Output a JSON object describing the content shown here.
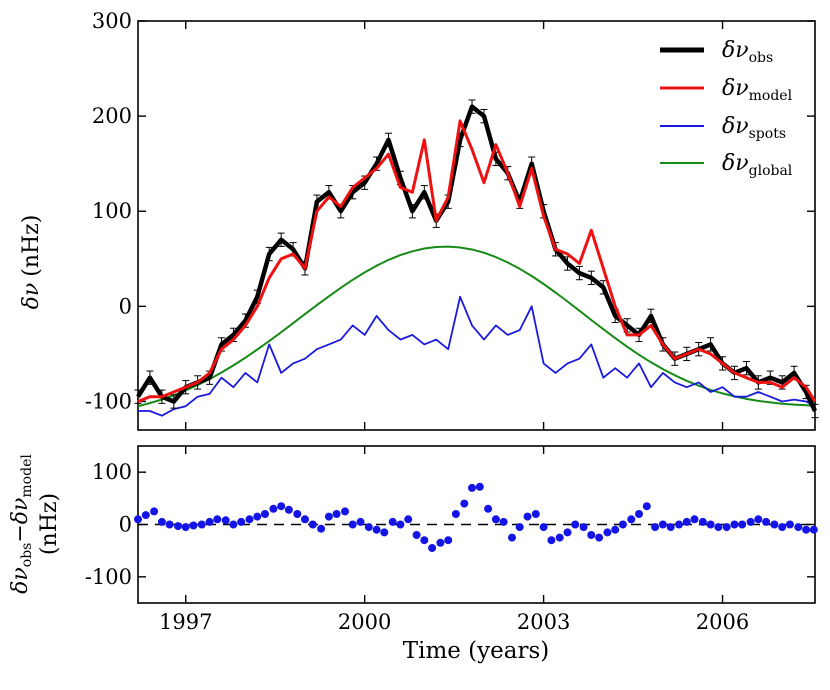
{
  "chart_data": [
    {
      "type": "line",
      "panel": "top",
      "ylabel": {
        "sym": "δν",
        "unit": "(nHz)"
      },
      "x_range": [
        1996.2,
        2007.55
      ],
      "ylim": [
        -130,
        300
      ],
      "x_ticks": [
        1997,
        2000,
        2003,
        2006
      ],
      "y_ticks": [
        -100,
        0,
        100,
        200,
        300
      ],
      "y_tick_labels": [
        "-100",
        "0",
        "100",
        "200",
        "300"
      ],
      "legend_position": "top-right",
      "legend": [
        {
          "sym": "δν",
          "sub": "obs",
          "color": "#000000"
        },
        {
          "sym": "δν",
          "sub": "model",
          "color": "#ee1111"
        },
        {
          "sym": "δν",
          "sub": "spots",
          "color": "#1a1adc"
        },
        {
          "sym": "δν",
          "sub": "global",
          "color": "#178a17"
        }
      ],
      "x": [
        1996.2,
        1996.4,
        1996.6,
        1996.8,
        1997.0,
        1997.2,
        1997.4,
        1997.6,
        1997.8,
        1998.0,
        1998.2,
        1998.4,
        1998.6,
        1998.8,
        1999.0,
        1999.2,
        1999.4,
        1999.6,
        1999.8,
        2000.0,
        2000.2,
        2000.4,
        2000.6,
        2000.8,
        2001.0,
        2001.2,
        2001.4,
        2001.6,
        2001.8,
        2002.0,
        2002.2,
        2002.4,
        2002.6,
        2002.8,
        2003.0,
        2003.2,
        2003.4,
        2003.6,
        2003.8,
        2004.0,
        2004.2,
        2004.4,
        2004.6,
        2004.8,
        2005.0,
        2005.2,
        2005.4,
        2005.6,
        2005.8,
        2006.0,
        2006.2,
        2006.4,
        2006.6,
        2006.8,
        2007.0,
        2007.2,
        2007.4,
        2007.55
      ],
      "series": [
        {
          "name": "obs",
          "values": [
            -95,
            -75,
            -95,
            -100,
            -85,
            -80,
            -75,
            -40,
            -30,
            -15,
            10,
            55,
            70,
            60,
            40,
            110,
            120,
            100,
            120,
            130,
            150,
            175,
            135,
            100,
            120,
            90,
            110,
            175,
            210,
            200,
            155,
            140,
            110,
            150,
            100,
            60,
            45,
            35,
            30,
            20,
            -10,
            -20,
            -30,
            -10,
            -40,
            -55,
            -50,
            -45,
            -40,
            -60,
            -70,
            -65,
            -80,
            -75,
            -80,
            -70,
            -90,
            -110
          ]
        },
        {
          "name": "model",
          "values": [
            -100,
            -95,
            -95,
            -90,
            -85,
            -80,
            -70,
            -45,
            -35,
            -20,
            0,
            30,
            50,
            55,
            40,
            100,
            115,
            105,
            125,
            135,
            145,
            160,
            125,
            120,
            175,
            90,
            115,
            195,
            165,
            130,
            170,
            140,
            105,
            145,
            95,
            60,
            55,
            45,
            80,
            40,
            0,
            -30,
            -30,
            -20,
            -40,
            -55,
            -50,
            -45,
            -50,
            -60,
            -70,
            -75,
            -80,
            -80,
            -85,
            -75,
            -85,
            -100
          ]
        },
        {
          "name": "spots",
          "values": [
            -110,
            -110,
            -115,
            -108,
            -105,
            -95,
            -92,
            -75,
            -85,
            -70,
            -80,
            -40,
            -70,
            -60,
            -55,
            -45,
            -40,
            -35,
            -20,
            -30,
            -10,
            -25,
            -35,
            -30,
            -40,
            -35,
            -45,
            10,
            -20,
            -35,
            -20,
            -30,
            -25,
            0,
            -60,
            -70,
            -60,
            -55,
            -40,
            -75,
            -65,
            -75,
            -60,
            -85,
            -70,
            -80,
            -85,
            -80,
            -90,
            -85,
            -95,
            -95,
            -90,
            -95,
            -100,
            -98,
            -100,
            -105
          ]
        },
        {
          "name": "global",
          "values": [
            -105.0,
            -101.7,
            -97.9,
            -93.5,
            -88.5,
            -82.8,
            -76.5,
            -69.6,
            -62.1,
            -54.0,
            -45.4,
            -36.5,
            -27.2,
            -17.7,
            -8.2,
            1.3,
            10.6,
            19.5,
            27.9,
            35.7,
            42.7,
            48.8,
            53.9,
            57.9,
            60.8,
            62.4,
            62.8,
            61.9,
            59.8,
            56.4,
            51.8,
            46.1,
            39.5,
            31.9,
            23.5,
            14.6,
            5.1,
            -4.6,
            -14.4,
            -24.0,
            -33.4,
            -42.4,
            -50.9,
            -58.8,
            -66.0,
            -72.5,
            -78.3,
            -83.4,
            -87.8,
            -91.5,
            -94.7,
            -97.3,
            -99.4,
            -101.0,
            -102.3,
            -103.3,
            -104.0,
            -104.5
          ]
        }
      ]
    },
    {
      "type": "scatter",
      "panel": "bottom",
      "xlabel": "Time (years)",
      "ylabel": {
        "sym1": "δν",
        "sub1": "obs",
        "minus": "−",
        "sym2": "δν",
        "sub2": "model",
        "unit": "(nHz)"
      },
      "x_range": [
        1996.2,
        2007.55
      ],
      "ylim": [
        -150,
        150
      ],
      "x_ticks": [
        1997,
        2000,
        2003,
        2006
      ],
      "x_tick_labels": [
        "1997",
        "2000",
        "2003",
        "2006"
      ],
      "y_ticks": [
        -100,
        0,
        100
      ],
      "y_tick_labels": [
        "-100",
        "0",
        "100"
      ],
      "reference_line": {
        "y": 0,
        "style": "dashed",
        "color": "#000000"
      },
      "point_color": "#1414e6",
      "x": [
        1996.2,
        1996.33,
        1996.47,
        1996.6,
        1996.73,
        1996.87,
        1997.0,
        1997.13,
        1997.27,
        1997.4,
        1997.53,
        1997.67,
        1997.8,
        1997.93,
        1998.07,
        1998.2,
        1998.33,
        1998.47,
        1998.6,
        1998.73,
        1998.87,
        1999.0,
        1999.13,
        1999.27,
        1999.4,
        1999.53,
        1999.67,
        1999.8,
        1999.93,
        2000.07,
        2000.2,
        2000.33,
        2000.47,
        2000.6,
        2000.73,
        2000.87,
        2001.0,
        2001.13,
        2001.27,
        2001.4,
        2001.53,
        2001.67,
        2001.8,
        2001.93,
        2002.07,
        2002.2,
        2002.33,
        2002.47,
        2002.6,
        2002.73,
        2002.87,
        2003.0,
        2003.13,
        2003.27,
        2003.4,
        2003.53,
        2003.67,
        2003.8,
        2003.93,
        2004.07,
        2004.2,
        2004.33,
        2004.47,
        2004.6,
        2004.73,
        2004.87,
        2005.0,
        2005.13,
        2005.27,
        2005.4,
        2005.53,
        2005.67,
        2005.8,
        2005.93,
        2006.07,
        2006.2,
        2006.33,
        2006.47,
        2006.6,
        2006.73,
        2006.87,
        2007.0,
        2007.13,
        2007.27,
        2007.4,
        2007.53
      ],
      "values": [
        10,
        18,
        25,
        5,
        0,
        -3,
        -5,
        -2,
        0,
        5,
        10,
        8,
        0,
        5,
        10,
        15,
        20,
        30,
        35,
        28,
        20,
        10,
        0,
        -8,
        15,
        20,
        25,
        0,
        5,
        -5,
        -10,
        -15,
        5,
        0,
        10,
        -20,
        -30,
        -45,
        -35,
        -30,
        20,
        40,
        70,
        72,
        30,
        10,
        5,
        -25,
        -5,
        15,
        20,
        -5,
        -30,
        -25,
        -15,
        0,
        -5,
        -20,
        -25,
        -15,
        -10,
        0,
        10,
        20,
        35,
        -5,
        0,
        -5,
        0,
        5,
        10,
        5,
        0,
        -5,
        -5,
        0,
        0,
        5,
        10,
        5,
        0,
        -5,
        0,
        -5,
        -10,
        -10
      ]
    }
  ]
}
